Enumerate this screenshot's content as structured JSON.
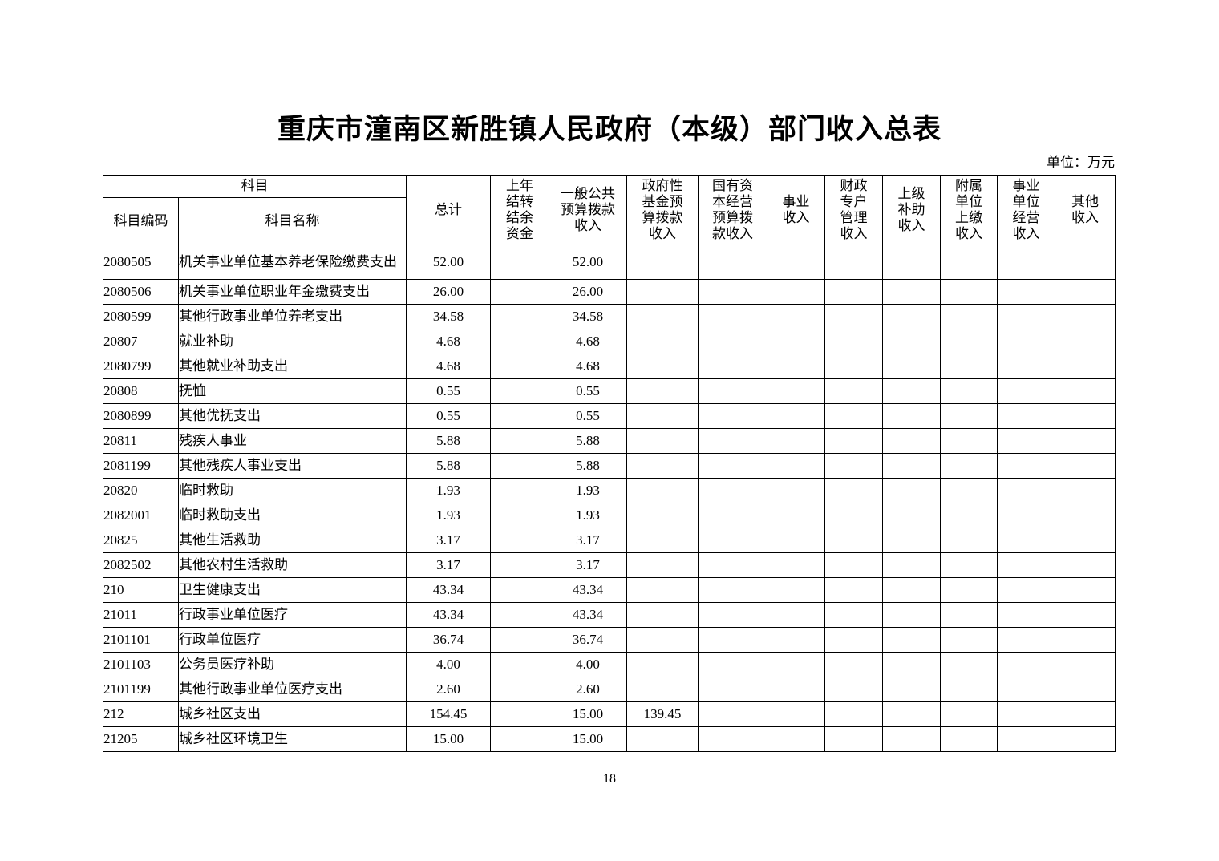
{
  "title": "重庆市潼南区新胜镇人民政府（本级）部门收入总表",
  "unit_label": "单位：万元",
  "page_number": "18",
  "table": {
    "header": {
      "subject_group": "科目",
      "code": "科目编码",
      "name": "科目名称",
      "columns": [
        "总计",
        "上年\n结转\n结余\n资金",
        "一般公共\n预算拨款\n收入",
        "政府性\n基金预\n算拨款\n收入",
        "国有资\n本经营\n预算拨\n款收入",
        "事业\n收入",
        "财政\n专户\n管理\n收入",
        "上级\n补助\n收入",
        "附属\n单位\n上缴\n收入",
        "事业\n单位\n经营\n收入",
        "其他\n收入"
      ]
    },
    "rows": [
      [
        "2080505",
        "机关事业单位基本养老保险缴费支出",
        "52.00",
        "",
        "52.00",
        "",
        "",
        "",
        "",
        "",
        "",
        "",
        ""
      ],
      [
        "2080506",
        "机关事业单位职业年金缴费支出",
        "26.00",
        "",
        "26.00",
        "",
        "",
        "",
        "",
        "",
        "",
        "",
        ""
      ],
      [
        "2080599",
        "其他行政事业单位养老支出",
        "34.58",
        "",
        "34.58",
        "",
        "",
        "",
        "",
        "",
        "",
        "",
        ""
      ],
      [
        "20807",
        "就业补助",
        "4.68",
        "",
        "4.68",
        "",
        "",
        "",
        "",
        "",
        "",
        "",
        ""
      ],
      [
        "2080799",
        "其他就业补助支出",
        "4.68",
        "",
        "4.68",
        "",
        "",
        "",
        "",
        "",
        "",
        "",
        ""
      ],
      [
        "20808",
        "抚恤",
        "0.55",
        "",
        "0.55",
        "",
        "",
        "",
        "",
        "",
        "",
        "",
        ""
      ],
      [
        "2080899",
        "其他优抚支出",
        "0.55",
        "",
        "0.55",
        "",
        "",
        "",
        "",
        "",
        "",
        "",
        ""
      ],
      [
        "20811",
        "残疾人事业",
        "5.88",
        "",
        "5.88",
        "",
        "",
        "",
        "",
        "",
        "",
        "",
        ""
      ],
      [
        "2081199",
        "其他残疾人事业支出",
        "5.88",
        "",
        "5.88",
        "",
        "",
        "",
        "",
        "",
        "",
        "",
        ""
      ],
      [
        "20820",
        "临时救助",
        "1.93",
        "",
        "1.93",
        "",
        "",
        "",
        "",
        "",
        "",
        "",
        ""
      ],
      [
        "2082001",
        "临时救助支出",
        "1.93",
        "",
        "1.93",
        "",
        "",
        "",
        "",
        "",
        "",
        "",
        ""
      ],
      [
        "20825",
        "其他生活救助",
        "3.17",
        "",
        "3.17",
        "",
        "",
        "",
        "",
        "",
        "",
        "",
        ""
      ],
      [
        "2082502",
        "其他农村生活救助",
        "3.17",
        "",
        "3.17",
        "",
        "",
        "",
        "",
        "",
        "",
        "",
        ""
      ],
      [
        "210",
        "卫生健康支出",
        "43.34",
        "",
        "43.34",
        "",
        "",
        "",
        "",
        "",
        "",
        "",
        ""
      ],
      [
        "21011",
        "行政事业单位医疗",
        "43.34",
        "",
        "43.34",
        "",
        "",
        "",
        "",
        "",
        "",
        "",
        ""
      ],
      [
        "2101101",
        "行政单位医疗",
        "36.74",
        "",
        "36.74",
        "",
        "",
        "",
        "",
        "",
        "",
        "",
        ""
      ],
      [
        "2101103",
        "公务员医疗补助",
        "4.00",
        "",
        "4.00",
        "",
        "",
        "",
        "",
        "",
        "",
        "",
        ""
      ],
      [
        "2101199",
        "其他行政事业单位医疗支出",
        "2.60",
        "",
        "2.60",
        "",
        "",
        "",
        "",
        "",
        "",
        "",
        ""
      ],
      [
        "212",
        "城乡社区支出",
        "154.45",
        "",
        "15.00",
        "139.45",
        "",
        "",
        "",
        "",
        "",
        "",
        ""
      ],
      [
        "21205",
        "城乡社区环境卫生",
        "15.00",
        "",
        "15.00",
        "",
        "",
        "",
        "",
        "",
        "",
        "",
        ""
      ]
    ]
  }
}
